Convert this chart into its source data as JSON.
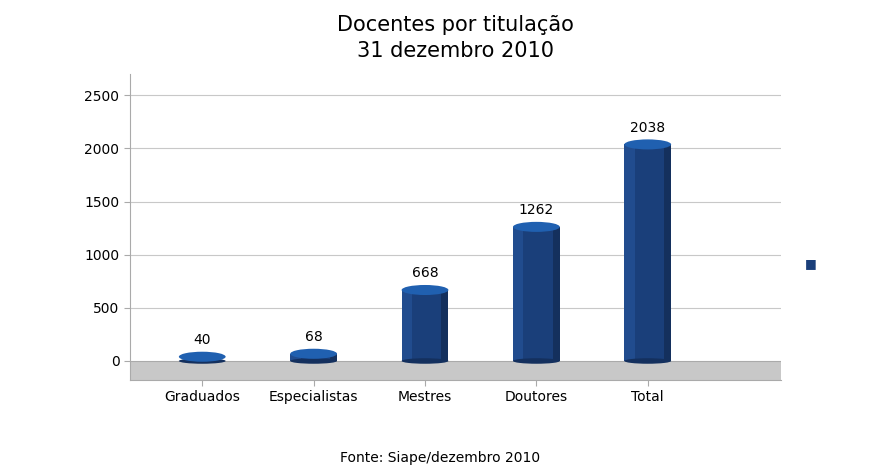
{
  "title_line1": "Docentes por titulação",
  "title_line2": "31 dezembro 2010",
  "categories": [
    "Graduados",
    "Especialistas",
    "Mestres",
    "Doutores",
    "Total"
  ],
  "values": [
    40,
    68,
    668,
    1262,
    2038
  ],
  "col_main": "#1a3f7a",
  "col_left": "#2858a0",
  "col_right": "#122a52",
  "col_top": "#2060b0",
  "col_top_dark": "#14305e",
  "floor_color": "#c8c8c8",
  "floor_line_color": "#aaaaaa",
  "background_color": "#ffffff",
  "grid_color": "#c8c8c8",
  "legend_color": "#1a3f7a",
  "ylabel_ticks": [
    0,
    500,
    1000,
    1500,
    2000,
    2500
  ],
  "ylim_max": 2700,
  "source_text": "Fonte: Siape/dezembro 2010",
  "title_fontsize": 15,
  "tick_fontsize": 10,
  "value_fontsize": 10,
  "source_fontsize": 10
}
